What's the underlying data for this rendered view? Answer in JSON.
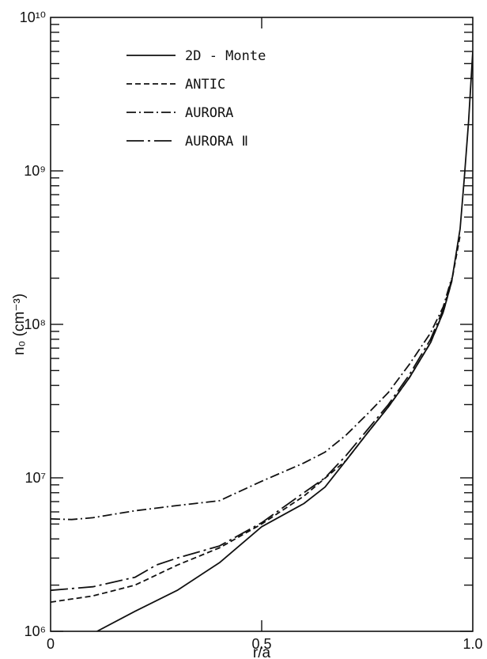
{
  "chart_data": {
    "type": "line",
    "title": "",
    "xlabel": "r/a",
    "ylabel": "n₀ (cm⁻³)",
    "xlim": [
      0,
      1.0
    ],
    "ylim": [
      1000000,
      10000000000
    ],
    "yscale": "log",
    "grid": false,
    "legend_placement": "top-left",
    "x_ticks": [
      {
        "value": 0,
        "label": "0"
      },
      {
        "value": 0.5,
        "label": "0.5"
      },
      {
        "value": 1.0,
        "label": "1.0"
      }
    ],
    "y_ticks": [
      {
        "exp": 6,
        "label": "10⁶"
      },
      {
        "exp": 7,
        "label": "10⁷"
      },
      {
        "exp": 8,
        "label": "10⁸"
      },
      {
        "exp": 9,
        "label": "10⁹"
      },
      {
        "exp": 10,
        "label": "10¹⁰"
      }
    ],
    "series": [
      {
        "name": "2D - Monte",
        "style": "solid",
        "x": [
          0.11,
          0.2,
          0.3,
          0.4,
          0.5,
          0.6,
          0.65,
          0.7,
          0.75,
          0.8,
          0.85,
          0.9,
          0.93,
          0.95,
          0.97,
          0.98,
          0.99,
          1.0
        ],
        "y": [
          1000000,
          1350000,
          1850000,
          2800000,
          4800000,
          6800000,
          8700000,
          13000000,
          19500000,
          29000000,
          45000000,
          76000000,
          120000000,
          190000000,
          420000000,
          900000000,
          2100000000,
          6000000000
        ]
      },
      {
        "name": "ANTIC",
        "style": "dashed",
        "x": [
          0,
          0.1,
          0.2,
          0.3,
          0.4,
          0.5,
          0.6,
          0.7,
          0.75,
          0.8,
          0.85,
          0.9,
          0.93,
          0.95,
          0.97
        ],
        "y": [
          1550000,
          1700000,
          2000000,
          2700000,
          3500000,
          5000000,
          7600000,
          13000000,
          19500000,
          29000000,
          45000000,
          76000000,
          120000000,
          190000000,
          380000000
        ]
      },
      {
        "name": "AURORA",
        "style": "dashdot",
        "x": [
          0,
          0.05,
          0.1,
          0.2,
          0.3,
          0.4,
          0.5,
          0.6,
          0.65,
          0.7,
          0.75,
          0.8,
          0.85,
          0.9,
          0.93,
          0.95
        ],
        "y": [
          5400000,
          5350000,
          5500000,
          6100000,
          6600000,
          7100000,
          9500000,
          12500000,
          14700000,
          19000000,
          26000000,
          36000000,
          55000000,
          88000000,
          130000000,
          200000000
        ]
      },
      {
        "name": "AURORA Ⅱ",
        "style": "longdashdot",
        "x": [
          0,
          0.1,
          0.2,
          0.25,
          0.3,
          0.4,
          0.5,
          0.6,
          0.65,
          0.7,
          0.75,
          0.8,
          0.85,
          0.9,
          0.93,
          0.95
        ],
        "y": [
          1850000,
          1950000,
          2250000,
          2700000,
          3000000,
          3600000,
          5100000,
          8000000,
          10000000,
          14000000,
          20500000,
          30000000,
          47000000,
          80000000,
          125000000,
          195000000
        ]
      }
    ]
  }
}
